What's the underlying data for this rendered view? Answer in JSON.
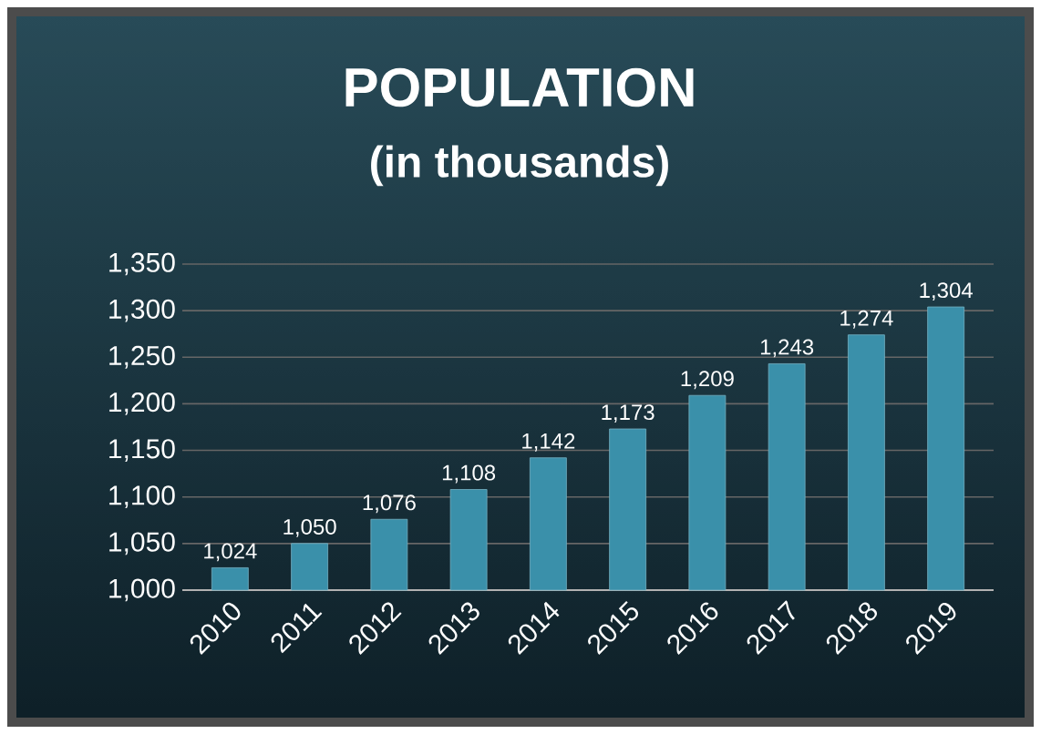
{
  "chart_data": {
    "type": "bar",
    "title": "POPULATION",
    "subtitle": "(in thousands)",
    "categories": [
      "2010",
      "2011",
      "2012",
      "2013",
      "2014",
      "2015",
      "2016",
      "2017",
      "2018",
      "2019"
    ],
    "values": [
      1024,
      1050,
      1076,
      1108,
      1142,
      1173,
      1209,
      1243,
      1274,
      1304
    ],
    "value_labels": [
      "1,024",
      "1,050",
      "1,076",
      "1,108",
      "1,142",
      "1,173",
      "1,209",
      "1,243",
      "1,274",
      "1,304"
    ],
    "color": "#3a90aa",
    "ylim": [
      1000,
      1350
    ],
    "yticks": [
      {
        "value": 1000,
        "label": "1,000"
      },
      {
        "value": 1050,
        "label": "1,050"
      },
      {
        "value": 1100,
        "label": "1,100"
      },
      {
        "value": 1150,
        "label": "1,150"
      },
      {
        "value": 1200,
        "label": "1,200"
      },
      {
        "value": 1250,
        "label": "1,250"
      },
      {
        "value": 1300,
        "label": "1,300"
      },
      {
        "value": 1350,
        "label": "1,350"
      }
    ],
    "grid": "y"
  }
}
